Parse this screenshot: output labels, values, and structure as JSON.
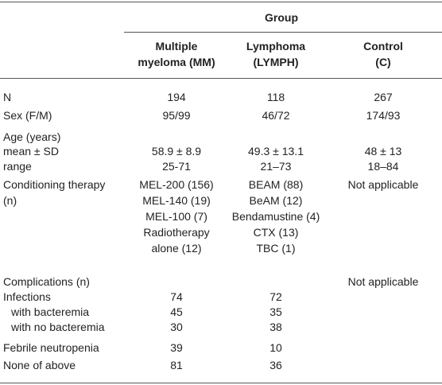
{
  "table": {
    "group": "Group",
    "columns": [
      [
        "Multiple",
        "myeloma (MM)"
      ],
      [
        "Lymphoma",
        "(LYMPH)"
      ],
      [
        "Control",
        "(C)"
      ]
    ],
    "rows": [
      {
        "label": [
          "N"
        ],
        "cells": [
          [
            "194"
          ],
          [
            "118"
          ],
          [
            "267"
          ]
        ]
      },
      {
        "label": [
          "Sex (F/M)"
        ],
        "cells": [
          [
            "95/99"
          ],
          [
            "46/72"
          ],
          [
            "174/93"
          ]
        ]
      },
      {
        "label": [
          "Age (years)"
        ],
        "cells": [
          [],
          [],
          []
        ]
      },
      {
        "label": [
          "mean ± SD"
        ],
        "cells": [
          [
            "58.9 ± 8.9"
          ],
          [
            "49.3 ± 13.1"
          ],
          [
            "48 ± 13"
          ]
        ]
      },
      {
        "label": [
          "range"
        ],
        "cells": [
          [
            "25-71"
          ],
          [
            "21–73"
          ],
          [
            "18–84"
          ]
        ]
      },
      {
        "label": [
          "Conditioning therapy",
          "(n)"
        ],
        "cells": [
          [
            "MEL-200 (156)",
            "MEL-140 (19)",
            "MEL-100 (7)",
            "Radiotherapy",
            "alone (12)"
          ],
          [
            "BEAM (88)",
            "BeAM (12)",
            "Bendamustine (4)",
            "CTX (13)",
            "TBC (1)"
          ],
          [
            "Not applicable"
          ]
        ]
      },
      {
        "label": [
          "Complications (n)"
        ],
        "cells": [
          [],
          [],
          [
            "Not applicable"
          ]
        ]
      },
      {
        "label": [
          "Infections"
        ],
        "cells": [
          [
            "74"
          ],
          [
            "72"
          ],
          []
        ]
      },
      {
        "label": [
          "with bacteremia"
        ],
        "cells": [
          [
            "45"
          ],
          [
            "35"
          ],
          []
        ]
      },
      {
        "label": [
          "with no bacteremia"
        ],
        "cells": [
          [
            "30"
          ],
          [
            "38"
          ],
          []
        ]
      },
      {
        "label": [
          "Febrile neutropenia"
        ],
        "cells": [
          [
            "39"
          ],
          [
            "10"
          ],
          []
        ]
      },
      {
        "label": [
          "None of above"
        ],
        "cells": [
          [
            "81"
          ],
          [
            "36"
          ],
          []
        ]
      }
    ]
  }
}
